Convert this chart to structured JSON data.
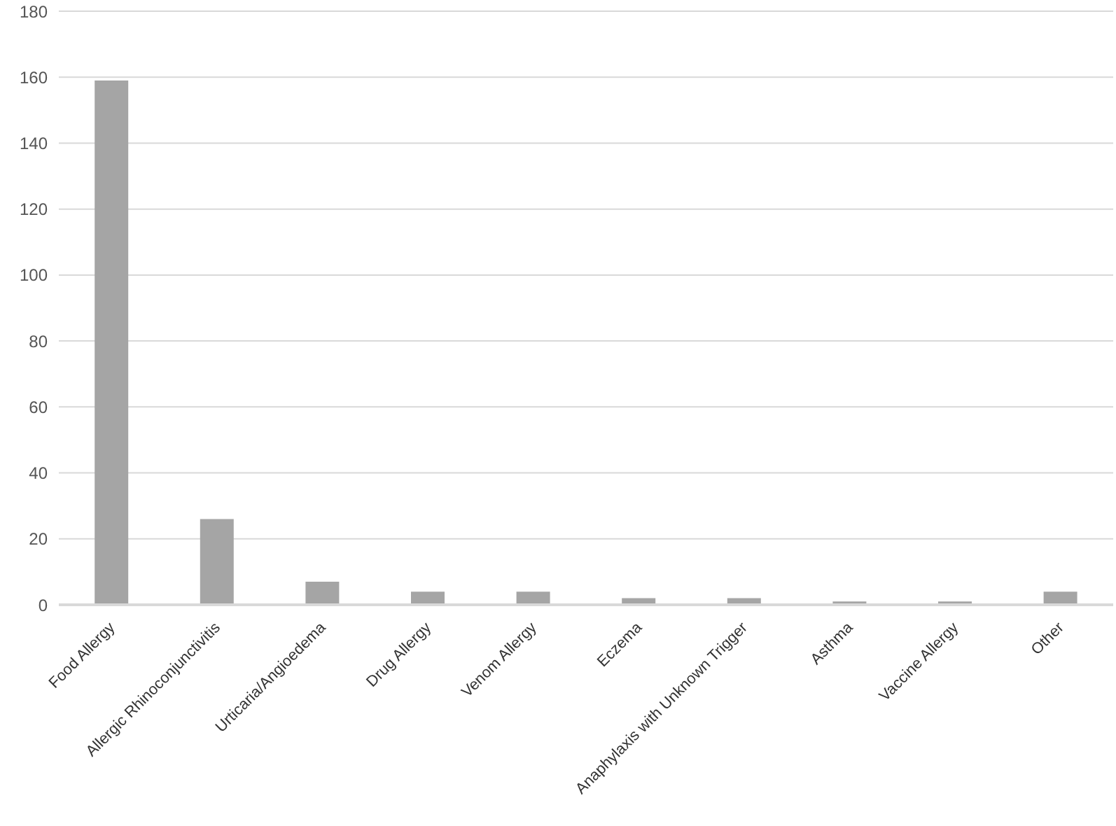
{
  "chart_data": {
    "type": "bar",
    "categories": [
      "Food Allergy",
      "Allergic Rhinoconjunctivitis",
      "Urticaria/Angioedema",
      "Drug Allergy",
      "Venom Allergy",
      "Eczema",
      "Anaphylaxis with Unknown Trigger",
      "Asthma",
      "Vaccine Allergy",
      "Other"
    ],
    "values": [
      159,
      26,
      7,
      4,
      4,
      2,
      2,
      1,
      1,
      4
    ],
    "color": "#a5a5a5",
    "ylim": [
      0,
      180
    ],
    "yticks": [
      0,
      20,
      40,
      60,
      80,
      100,
      120,
      140,
      160,
      180
    ],
    "grid": "y",
    "legend": false
  }
}
